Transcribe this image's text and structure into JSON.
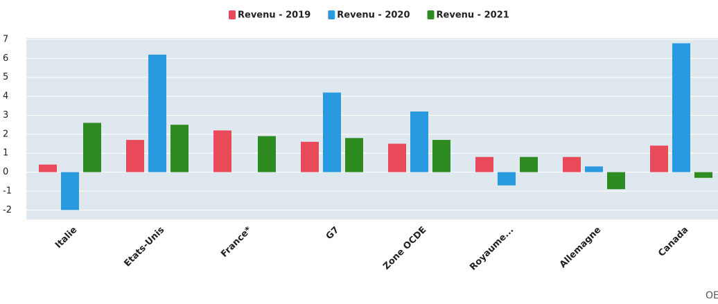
{
  "chart_data": {
    "type": "bar",
    "categories": [
      "Italie",
      "Etats-Unis",
      "France*",
      "G7",
      "Zone OCDE",
      "Royaume...",
      "Allemagne",
      "Canada"
    ],
    "series": [
      {
        "name": "Revenu - 2019",
        "color": "#e84a5a",
        "values": [
          0.4,
          1.7,
          2.2,
          1.6,
          1.5,
          0.8,
          0.8,
          1.4
        ]
      },
      {
        "name": "Revenu - 2020",
        "color": "#2a9ae0",
        "values": [
          -2,
          6.2,
          null,
          4.2,
          3.2,
          -0.7,
          0.3,
          6.8
        ]
      },
      {
        "name": "Revenu - 2021",
        "color": "#2e8b22",
        "values": [
          2.6,
          2.5,
          1.9,
          1.8,
          1.7,
          0.8,
          -0.9,
          -0.3
        ]
      }
    ],
    "ylim": [
      -2.5,
      7
    ],
    "yticks": [
      -2,
      -1,
      0,
      1,
      2,
      3,
      4,
      5,
      6,
      7
    ],
    "grid": true,
    "background": "#dfe8ef",
    "logo": "OE"
  }
}
